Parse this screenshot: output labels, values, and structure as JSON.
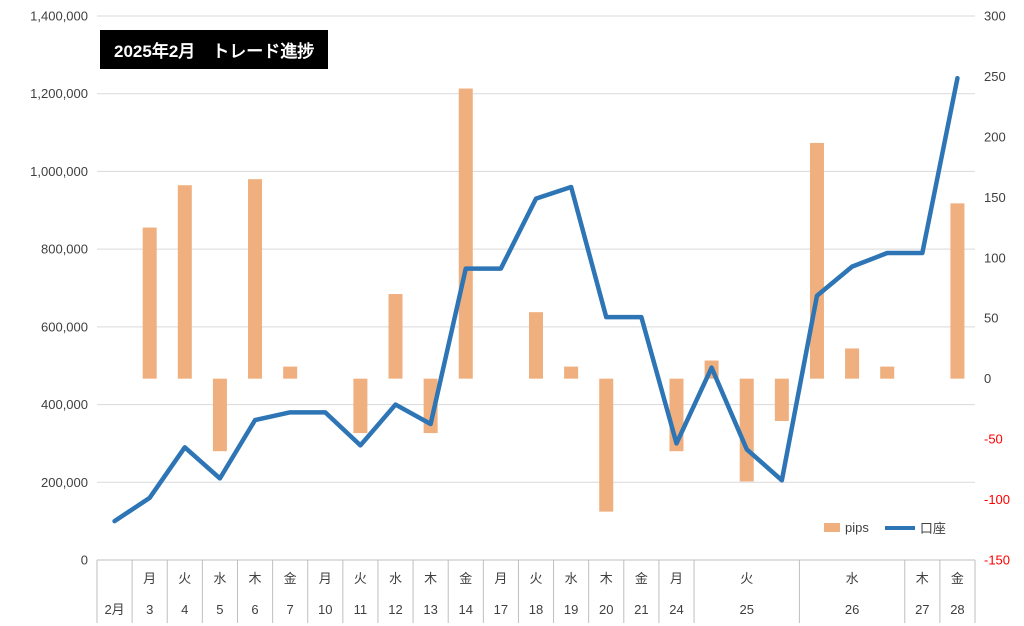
{
  "title": "2025年2月　トレード進捗",
  "legend": {
    "pips": "pips",
    "account": "口座"
  },
  "colors": {
    "bar": "#EFAF7E",
    "line": "#2E75B6",
    "grid": "#D9D9D9",
    "axis_line": "#BFBFBF",
    "axis_text": "#404040",
    "negative_tick": "#FF0000",
    "title_bg": "#000000",
    "title_text": "#FFFFFF"
  },
  "chart_data": {
    "type": "combo",
    "title": "2025年2月　トレード進捗",
    "n_slots": 25,
    "categories": [
      "2月",
      "3",
      "4",
      "5",
      "6",
      "7",
      "10",
      "11",
      "12",
      "13",
      "14",
      "17",
      "18",
      "19",
      "20",
      "21",
      "24",
      "",
      "",
      "25",
      "",
      "",
      "26",
      "27",
      "28"
    ],
    "label_groups": [
      {
        "weekday": "",
        "date": "2月",
        "span": 1
      },
      {
        "weekday": "月",
        "date": "3",
        "span": 1
      },
      {
        "weekday": "火",
        "date": "4",
        "span": 1
      },
      {
        "weekday": "水",
        "date": "5",
        "span": 1
      },
      {
        "weekday": "木",
        "date": "6",
        "span": 1
      },
      {
        "weekday": "金",
        "date": "7",
        "span": 1
      },
      {
        "weekday": "月",
        "date": "10",
        "span": 1
      },
      {
        "weekday": "火",
        "date": "11",
        "span": 1
      },
      {
        "weekday": "水",
        "date": "12",
        "span": 1
      },
      {
        "weekday": "木",
        "date": "13",
        "span": 1
      },
      {
        "weekday": "金",
        "date": "14",
        "span": 1
      },
      {
        "weekday": "月",
        "date": "17",
        "span": 1
      },
      {
        "weekday": "火",
        "date": "18",
        "span": 1
      },
      {
        "weekday": "水",
        "date": "19",
        "span": 1
      },
      {
        "weekday": "木",
        "date": "20",
        "span": 1
      },
      {
        "weekday": "金",
        "date": "21",
        "span": 1
      },
      {
        "weekday": "月",
        "date": "24",
        "span": 1
      },
      {
        "weekday": "火",
        "date": "25",
        "span": 3
      },
      {
        "weekday": "水",
        "date": "26",
        "span": 3
      },
      {
        "weekday": "木",
        "date": "27",
        "span": 1
      },
      {
        "weekday": "金",
        "date": "28",
        "span": 1
      }
    ],
    "series": [
      {
        "name": "pips",
        "type": "bar",
        "axis": "right",
        "values": [
          0,
          125,
          160,
          -60,
          165,
          10,
          0,
          -45,
          70,
          -45,
          240,
          0,
          55,
          10,
          -110,
          0,
          -60,
          15,
          -85,
          -35,
          195,
          25,
          10,
          0,
          145
        ]
      },
      {
        "name": "口座",
        "type": "line",
        "axis": "left",
        "values": [
          100000,
          160000,
          290000,
          210000,
          360000,
          380000,
          380000,
          295000,
          400000,
          350000,
          750000,
          750000,
          930000,
          960000,
          625000,
          625000,
          300000,
          495000,
          285000,
          205000,
          680000,
          755000,
          790000,
          790000,
          1240000
        ]
      }
    ],
    "left_axis": {
      "min": 0,
      "max": 1400000,
      "step": 200000
    },
    "right_axis": {
      "min": -150,
      "max": 300,
      "step": 50
    },
    "grid": "horizontal",
    "legend_position": "inside-bottom-right"
  }
}
